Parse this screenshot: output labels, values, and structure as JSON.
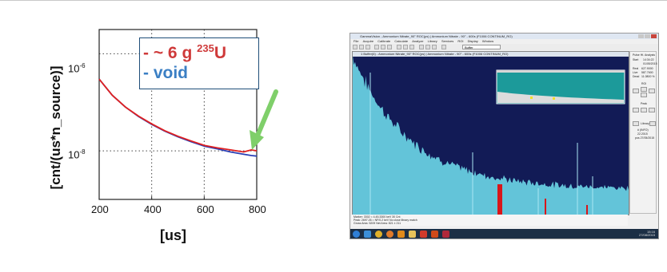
{
  "plot": {
    "ylabel": "[cnt/(us*n_source)]",
    "xlabel": "[us]",
    "xticks": [
      "200",
      "400",
      "600",
      "800"
    ],
    "yticks": [
      {
        "mant": "10",
        "exp": "-6"
      },
      {
        "mant": "10",
        "exp": "-8"
      }
    ],
    "legend": {
      "red_label": "- ~ 6 g ",
      "red_isotope_mass": "235",
      "red_isotope_symbol": "U",
      "blue_label": "- void"
    },
    "colors": {
      "red": "#e02020",
      "blue": "#2a3fb5",
      "arrow": "#7fcf6a"
    }
  },
  "chart_data": {
    "type": "line",
    "title": "",
    "xlabel": "[us]",
    "ylabel": "[cnt/(us*n_source)]",
    "xlim": [
      200,
      800
    ],
    "ylim_log10": [
      -9,
      -5.5
    ],
    "yscale": "log",
    "grid": "dotted at 10^-6 and 10^-8",
    "legend_placement": "top-right",
    "series": [
      {
        "name": "- ~ 6 g 235U",
        "color": "#e02020",
        "x": [
          200,
          250,
          300,
          350,
          400,
          450,
          500,
          550,
          600,
          650,
          700,
          750,
          780,
          800
        ],
        "y": [
          3e-07,
          1.4e-07,
          8e-08,
          5.2e-08,
          3.6e-08,
          2.6e-08,
          2e-08,
          1.6e-08,
          1.3e-08,
          1.15e-08,
          1.05e-08,
          9.5e-09,
          1.05e-08,
          1e-08
        ]
      },
      {
        "name": "- void",
        "color": "#2a3fb5",
        "x": [
          200,
          250,
          300,
          350,
          400,
          450,
          500,
          550,
          600,
          650,
          700,
          750,
          780,
          800
        ],
        "y": [
          3e-07,
          1.4e-07,
          8e-08,
          5.1e-08,
          3.5e-08,
          2.55e-08,
          1.95e-08,
          1.55e-08,
          1.25e-08,
          1.1e-08,
          9.5e-09,
          8.5e-09,
          8e-09,
          7.8e-09
        ]
      }
    ]
  },
  "app": {
    "title": "GammaVision - Ammonium Nitrate_90° ROC(ps) | Ammonium Nitrate - 90° - 600s (F1006 CONTINUM_RO)",
    "menu": [
      "File",
      "Acquire",
      "Calibrate",
      "Calculate",
      "Analyze",
      "Library",
      "Services",
      "ROI",
      "Display",
      "Window"
    ],
    "toolbar_select": "Buffer",
    "spectrum_title": "1 Buffer(6) - Ammonium Nitrate_90° ROC(ps) | Ammonium Nitrate - 90° - 600s (F1006 CONTINUM_RO)",
    "side": {
      "header": "Pulse Ht. Analysis",
      "start_label": "Start",
      "start_time": "14:34:22",
      "start_date": "01/05/2015",
      "real_label": "Real",
      "real_val": "627.9000",
      "live_label": "Live",
      "live_val": "587.7600",
      "dead_label": "Dead",
      "dead_val": "11.0800 %",
      "roi_label": "ROI",
      "peak_label": "Peak",
      "library_label": "Library",
      "lib_line1": "# (INFO)",
      "lib_line2": "22.2015",
      "lib_line3": "pos 27/05/2015"
    },
    "status_line1": "Marker: 3302 =   4.45.3300 keV            30 Cnt",
    "status_line2": "Peak: 2697.26 = NF/0.2 keV  No close library match",
    "status_line3": "Gross Area: 5209  Net Area: 821 ± 211",
    "clock_time": "15:16",
    "clock_date": "27/08/2015",
    "colors": {
      "spectrum_bg": "#121b56",
      "spectrum_fill": "#63c4d9",
      "roi": "#d8161a",
      "inset": "#1c9a9a"
    }
  }
}
